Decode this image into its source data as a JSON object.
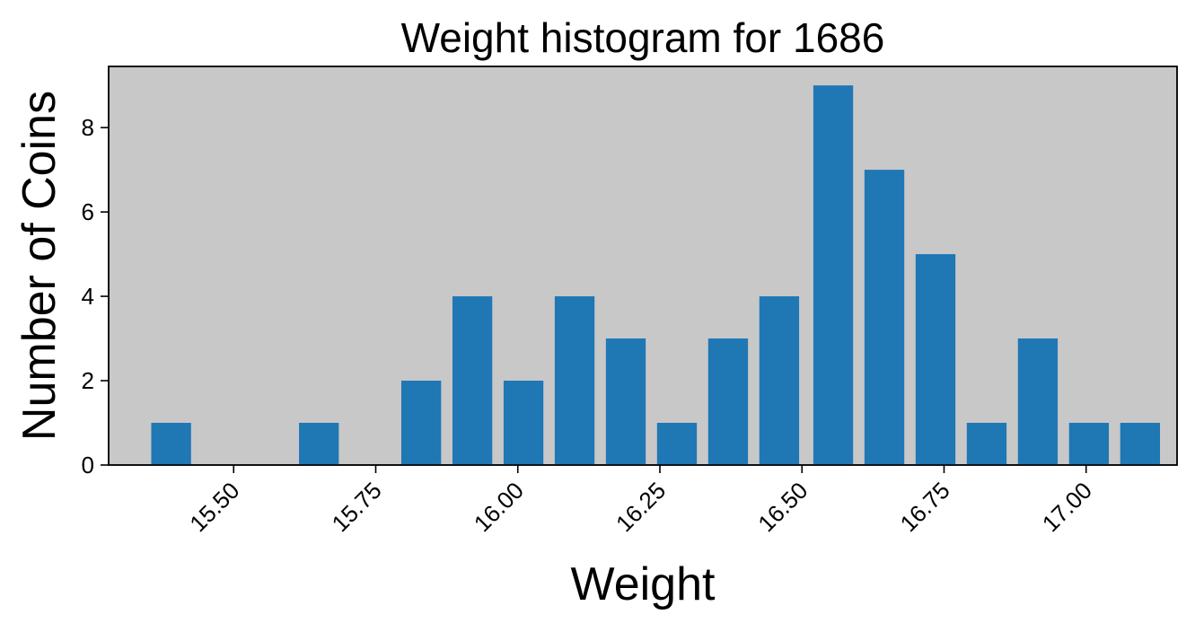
{
  "chart_data": {
    "type": "bar",
    "title": "Weight histogram for 1686",
    "xlabel": "Weight",
    "ylabel": "Number of Coins",
    "x": [
      15.39,
      15.65,
      15.83,
      15.92,
      16.01,
      16.1,
      16.19,
      16.28,
      16.37,
      16.46,
      16.555,
      16.645,
      16.735,
      16.825,
      16.915,
      17.005,
      17.095
    ],
    "values": [
      1,
      1,
      2,
      4,
      2,
      4,
      3,
      1,
      3,
      4,
      9,
      7,
      5,
      1,
      3,
      1,
      1
    ],
    "bar_width": 0.07,
    "xlim": [
      15.28,
      17.16
    ],
    "ylim": [
      0,
      9.45
    ],
    "xticks": [
      15.5,
      15.75,
      16.0,
      16.25,
      16.5,
      16.75,
      17.0
    ],
    "xtick_labels": [
      "15.50",
      "15.75",
      "16.00",
      "16.25",
      "16.50",
      "16.75",
      "17.00"
    ],
    "yticks": [
      0,
      2,
      4,
      6,
      8
    ],
    "ytick_labels": [
      "0",
      "2",
      "4",
      "6",
      "8"
    ],
    "grid": false,
    "colors": {
      "bar": "#1f77b4",
      "plot_background": "#c8c8c8",
      "axes_edge": "#000000"
    }
  }
}
